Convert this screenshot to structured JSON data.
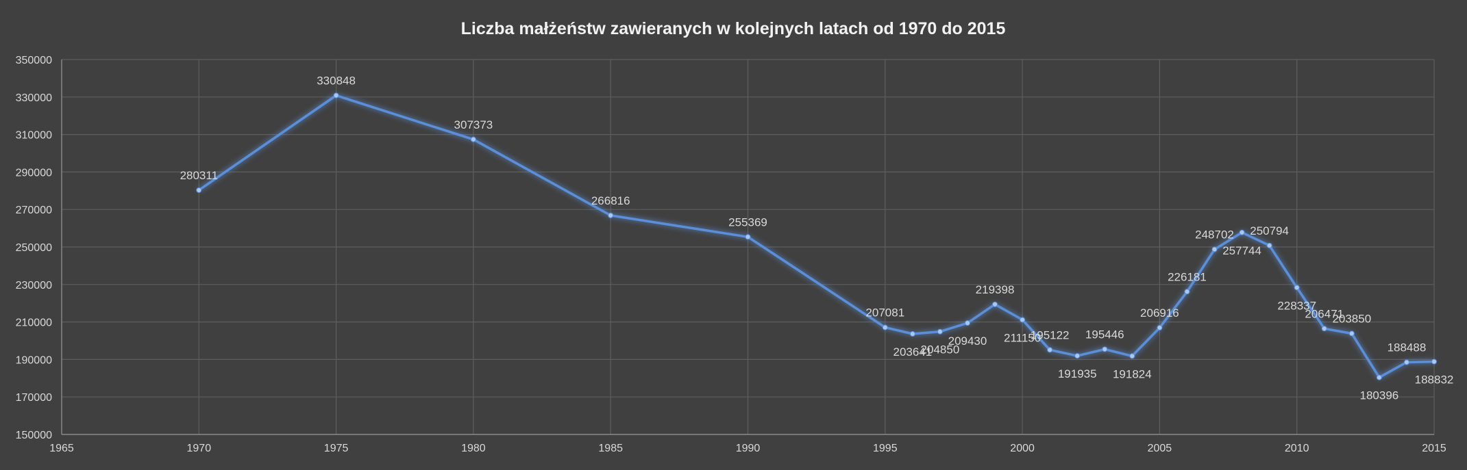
{
  "chart_data": {
    "type": "line",
    "title": "Liczba małżeństw zawieranych w kolejnych latach od 1970 do 2015",
    "xlabel": "",
    "ylabel": "",
    "xlim": [
      1965,
      2015
    ],
    "ylim": [
      150000,
      350000
    ],
    "x_ticks": [
      "1965",
      "1970",
      "1975",
      "1980",
      "1985",
      "1990",
      "1995",
      "2000",
      "2005",
      "2010",
      "2015"
    ],
    "y_ticks": [
      "150000",
      "170000",
      "190000",
      "210000",
      "230000",
      "250000",
      "270000",
      "290000",
      "310000",
      "330000",
      "350000"
    ],
    "grid": true,
    "line_color": "#5b8fd9",
    "series": [
      {
        "x": [
          1970,
          1975,
          1980,
          1985,
          1990,
          1995,
          1996,
          1997,
          1998,
          1999,
          2000,
          2001,
          2002,
          2003,
          2004,
          2005,
          2006,
          2007,
          2008,
          2009,
          2010,
          2011,
          2012,
          2013,
          2014,
          2015
        ],
        "values": [
          280311,
          330848,
          307373,
          266816,
          255369,
          207081,
          203641,
          204850,
          209430,
          219398,
          211150,
          195122,
          191935,
          195446,
          191824,
          206916,
          226181,
          248702,
          257744,
          250794,
          228337,
          206471,
          203850,
          180396,
          188488,
          188832
        ],
        "labels": [
          "280311",
          "330848",
          "307373",
          "266816",
          "255369",
          "207081",
          "203641",
          "204850",
          "209430",
          "219398",
          "211150",
          "195122",
          "191935",
          "195446",
          "191824",
          "206916",
          "226181",
          "248702",
          "257744",
          "250794",
          "228337",
          "206471",
          "203850",
          "180396",
          "188488",
          "188832"
        ]
      }
    ]
  }
}
